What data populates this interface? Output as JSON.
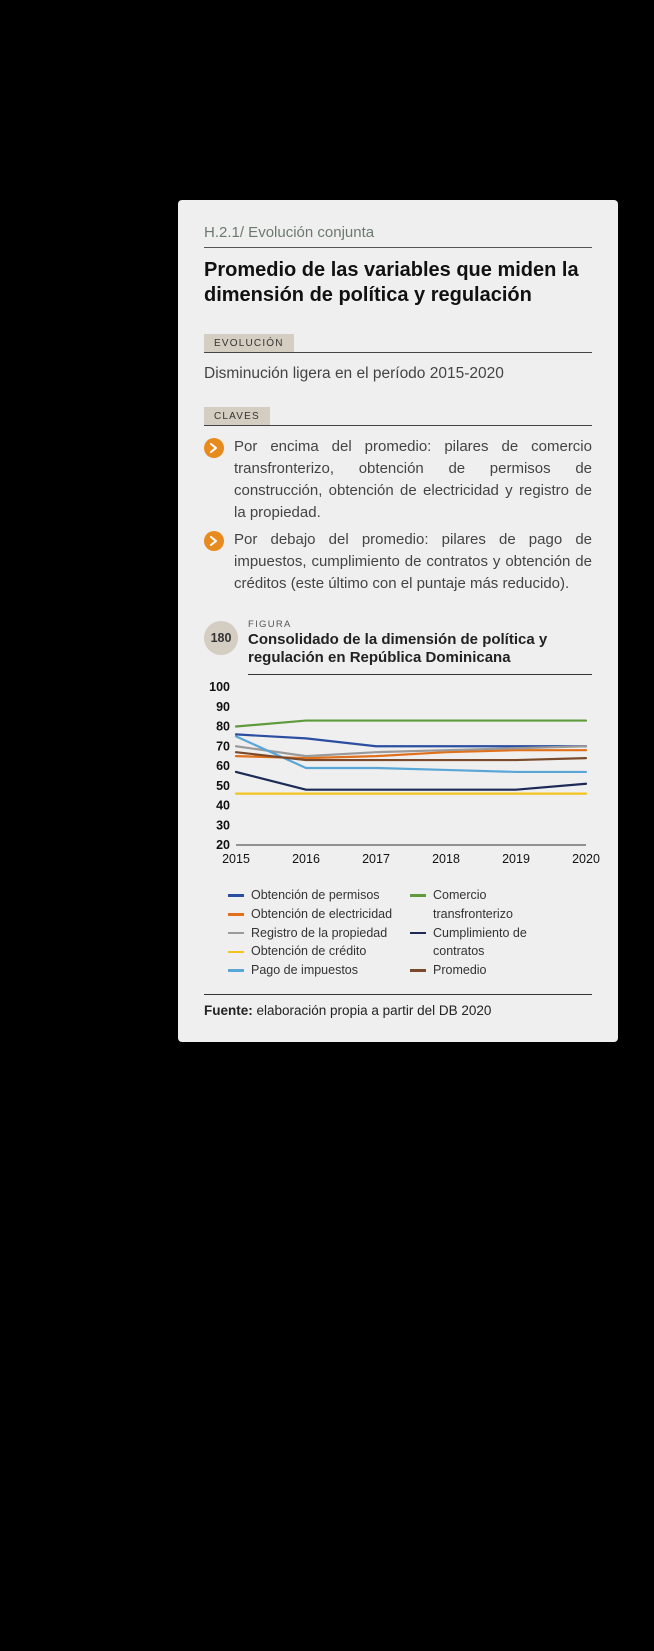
{
  "header": {
    "code": "H.2.1/ Evolución conjunta",
    "title": "Promedio de las variables que miden la dimensión de política y regulación"
  },
  "evolution": {
    "tag": "EVOLUCIÓN",
    "text": "Disminución ligera en el período 2015-2020"
  },
  "keys": {
    "tag": "CLAVES",
    "bullets": [
      "Por encima del promedio: pilares de comercio transfronterizo, obtención de permisos de construcción, obtención de electricidad y registro de la propiedad.",
      "Por debajo del promedio: pilares de pago de impuestos, cumplimiento de contratos y obtención de créditos (este último con el puntaje más reducido)."
    ]
  },
  "figure": {
    "number": "180",
    "label": "FIGURA",
    "title": "Consolidado de la dimensión de política y regulación en República Dominicana",
    "chart": {
      "type": "line",
      "years": [
        "2015",
        "2016",
        "2017",
        "2018",
        "2019",
        "2020"
      ],
      "ylim": [
        20,
        100
      ],
      "yticks": [
        20,
        30,
        40,
        50,
        60,
        70,
        80,
        90,
        100
      ],
      "background": "#efefef",
      "axis_color": "#333333",
      "axis_fontsize": 12.5,
      "line_width": 2.2,
      "series": [
        {
          "name": "Obtención de permisos",
          "color": "#2b4ea0",
          "values": [
            76,
            74,
            70,
            70,
            70,
            70
          ]
        },
        {
          "name": "Obtención de electricidad",
          "color": "#e1701a",
          "values": [
            65,
            64,
            65,
            67,
            68,
            68
          ]
        },
        {
          "name": "Registro de la propiedad",
          "color": "#9a9a9a",
          "values": [
            70,
            65,
            67,
            68,
            69,
            70
          ]
        },
        {
          "name": "Obtención de crédito",
          "color": "#f2c41e",
          "values": [
            46,
            46,
            46,
            46,
            46,
            46
          ]
        },
        {
          "name": "Pago de impuestos",
          "color": "#5aa6d6",
          "values": [
            75,
            59,
            59,
            58,
            57,
            57
          ]
        },
        {
          "name": "Comercio transfronterizo",
          "color": "#5f9b3c",
          "values": [
            80,
            83,
            83,
            83,
            83,
            83
          ]
        },
        {
          "name": "Cumplimiento de contratos",
          "color": "#1c2a55",
          "values": [
            57,
            48,
            48,
            48,
            48,
            51
          ]
        },
        {
          "name": "Promedio",
          "color": "#7a4a2a",
          "values": [
            67,
            63,
            63,
            63,
            63,
            64
          ]
        }
      ]
    },
    "source_label": "Fuente:",
    "source_text": " elaboración propia a partir del DB 2020"
  },
  "icon_color": "#e78b1e",
  "badge_bg": "#d4cdc1"
}
